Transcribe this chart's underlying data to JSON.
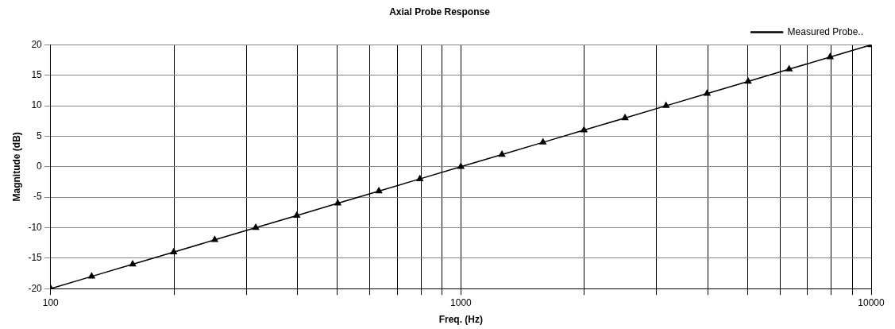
{
  "chart_data": {
    "type": "line",
    "title": "Axial Probe Response",
    "xlabel": "Freq. (Hz)",
    "ylabel": "Magnitude (dB)",
    "x": [
      100,
      125.9,
      158.5,
      199.5,
      251.2,
      316.2,
      398.1,
      501.2,
      631,
      794.3,
      1000,
      1259,
      1585,
      1995,
      2512,
      3162,
      3981,
      5012,
      6310,
      7943,
      10000
    ],
    "series": [
      {
        "name": "Measured Probe..",
        "color": "#000000",
        "values": [
          -20,
          -18,
          -16,
          -14,
          -12,
          -10,
          -8,
          -6,
          -4,
          -2,
          0,
          2,
          4,
          6,
          8,
          10,
          12,
          14,
          16,
          18,
          20
        ]
      }
    ],
    "log": "x",
    "xlim": [
      100,
      10000
    ],
    "xticks": [
      100,
      {
        "value": 200,
        "label": null
      },
      {
        "value": 300,
        "label": null
      },
      {
        "value": 400,
        "label": null
      },
      {
        "value": 500,
        "label": null
      },
      {
        "value": 600,
        "label": null
      },
      {
        "value": 700,
        "label": null
      },
      {
        "value": 800,
        "label": null
      },
      {
        "value": 900,
        "label": null
      },
      1000,
      {
        "value": 2000,
        "label": null
      },
      {
        "value": 3000,
        "label": null
      },
      {
        "value": 4000,
        "label": null
      },
      {
        "value": 5000,
        "label": null
      },
      {
        "value": 6000,
        "label": null
      },
      {
        "value": 7000,
        "label": null
      },
      {
        "value": 8000,
        "label": null
      },
      {
        "value": 9000,
        "label": null
      },
      10000
    ],
    "ylim": [
      -20,
      20
    ],
    "yticks": [
      -20,
      -15,
      -10,
      -5,
      0,
      5,
      10,
      15,
      20
    ],
    "grid": true,
    "legend": "top right",
    "marker": "triangle",
    "line_style": "solid"
  }
}
